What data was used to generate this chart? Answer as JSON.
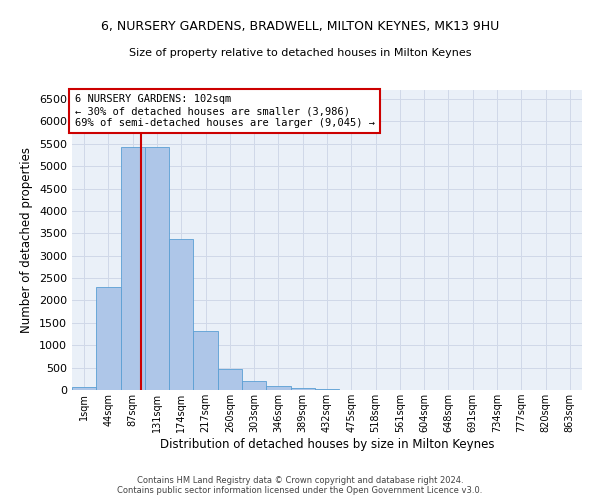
{
  "title1": "6, NURSERY GARDENS, BRADWELL, MILTON KEYNES, MK13 9HU",
  "title2": "Size of property relative to detached houses in Milton Keynes",
  "xlabel": "Distribution of detached houses by size in Milton Keynes",
  "ylabel": "Number of detached properties",
  "footer1": "Contains HM Land Registry data © Crown copyright and database right 2024.",
  "footer2": "Contains public sector information licensed under the Open Government Licence v3.0.",
  "categories": [
    "1sqm",
    "44sqm",
    "87sqm",
    "131sqm",
    "174sqm",
    "217sqm",
    "260sqm",
    "303sqm",
    "346sqm",
    "389sqm",
    "432sqm",
    "475sqm",
    "518sqm",
    "561sqm",
    "604sqm",
    "648sqm",
    "691sqm",
    "734sqm",
    "777sqm",
    "820sqm",
    "863sqm"
  ],
  "values": [
    70,
    2300,
    5420,
    5420,
    3380,
    1320,
    475,
    200,
    90,
    50,
    30,
    5,
    0,
    0,
    0,
    0,
    0,
    0,
    0,
    0,
    0
  ],
  "bar_color": "#aec6e8",
  "bar_edge_color": "#5a9fd4",
  "annotation_title": "6 NURSERY GARDENS: 102sqm",
  "annotation_line1": "← 30% of detached houses are smaller (3,986)",
  "annotation_line2": "69% of semi-detached houses are larger (9,045) →",
  "annotation_box_color": "#ffffff",
  "annotation_box_edge": "#cc0000",
  "vline_color": "#cc0000",
  "ylim": [
    0,
    6700
  ],
  "yticks": [
    0,
    500,
    1000,
    1500,
    2000,
    2500,
    3000,
    3500,
    4000,
    4500,
    5000,
    5500,
    6000,
    6500
  ],
  "grid_color": "#d0d8e8",
  "bg_color": "#eaf0f8"
}
